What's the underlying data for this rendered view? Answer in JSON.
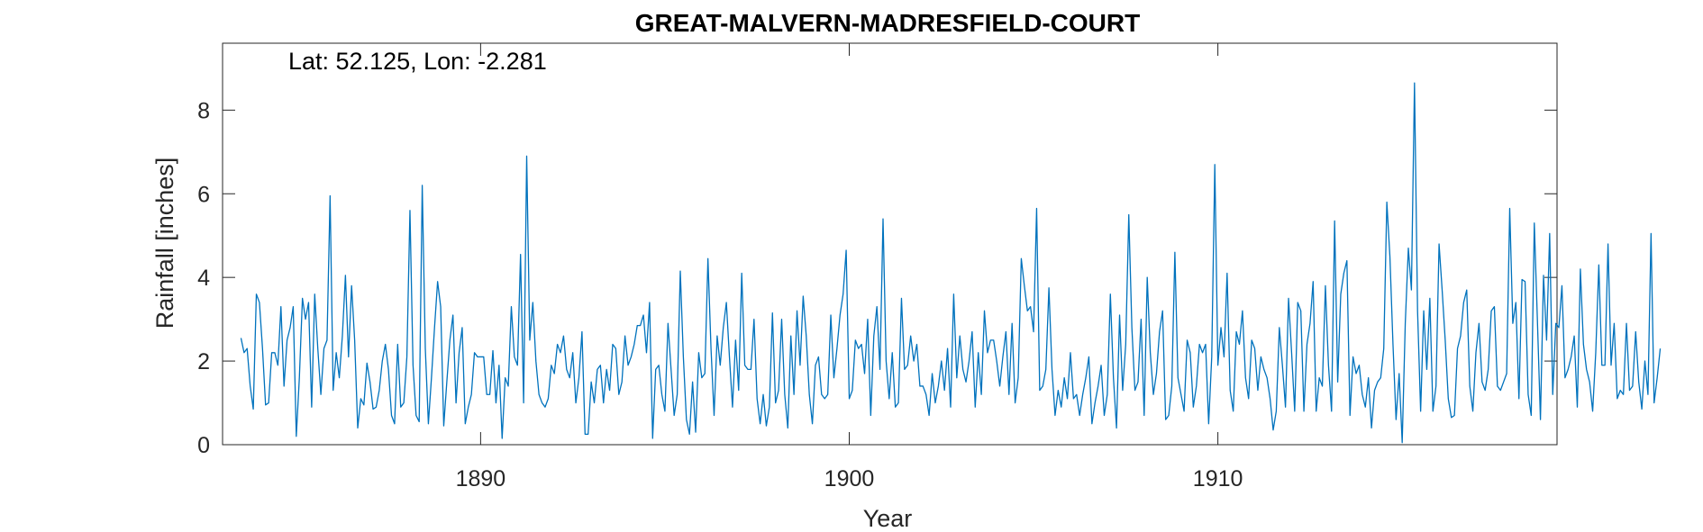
{
  "chart_data": {
    "type": "line",
    "title": "GREAT-MALVERN-MADRESFIELD-COURT",
    "annotation": "Lat: 52.125, Lon: -2.281",
    "xlabel": "Year",
    "ylabel": "Rainfall [inches]",
    "xlim": [
      1883.0,
      1919.2
    ],
    "ylim": [
      0,
      9.6
    ],
    "x_ticks": [
      1890,
      1900,
      1910
    ],
    "y_ticks": [
      0,
      2,
      4,
      6,
      8
    ],
    "grid": false,
    "line_color": "#0072BD",
    "x_start": 1883.5,
    "x_step": 0.0833333,
    "series": [
      {
        "values": [
          2.55,
          2.2,
          2.3,
          1.4,
          0.85,
          3.6,
          3.4,
          2.3,
          0.95,
          1.0,
          2.2,
          2.2,
          1.9,
          3.3,
          1.4,
          2.5,
          2.8,
          3.3,
          0.2,
          1.6,
          3.5,
          3.0,
          3.4,
          0.9,
          3.6,
          2.3,
          1.2,
          2.3,
          2.5,
          5.95,
          1.3,
          2.2,
          1.6,
          2.6,
          4.05,
          2.1,
          3.8,
          2.5,
          0.4,
          1.1,
          0.95,
          1.95,
          1.5,
          0.85,
          0.9,
          1.3,
          2.0,
          2.4,
          1.8,
          0.7,
          0.5,
          2.4,
          0.9,
          1.0,
          2.1,
          5.6,
          1.9,
          0.7,
          0.55,
          6.2,
          2.3,
          0.5,
          1.6,
          2.8,
          3.9,
          3.3,
          0.45,
          1.5,
          2.5,
          3.1,
          1.0,
          2.2,
          2.8,
          0.5,
          0.9,
          1.2,
          2.2,
          2.1,
          2.1,
          2.1,
          1.2,
          1.2,
          2.25,
          1.0,
          1.9,
          0.15,
          1.6,
          1.4,
          3.3,
          2.1,
          1.9,
          4.55,
          1.0,
          6.9,
          2.5,
          3.4,
          2.0,
          1.2,
          1.0,
          0.9,
          1.1,
          1.9,
          1.7,
          2.4,
          2.2,
          2.6,
          1.8,
          1.6,
          2.2,
          1.0,
          1.6,
          2.7,
          0.25,
          0.25,
          1.5,
          1.0,
          1.8,
          1.9,
          1.0,
          1.8,
          1.3,
          2.4,
          2.3,
          1.2,
          1.5,
          2.6,
          1.9,
          2.1,
          2.4,
          2.85,
          2.85,
          3.1,
          2.2,
          3.4,
          0.15,
          1.8,
          1.9,
          1.2,
          0.8,
          2.9,
          1.8,
          0.7,
          1.2,
          4.15,
          2.1,
          0.6,
          0.25,
          1.5,
          0.3,
          2.2,
          1.6,
          1.7,
          4.45,
          2.3,
          0.7,
          2.6,
          1.9,
          2.8,
          3.4,
          2.1,
          0.9,
          2.5,
          1.3,
          4.1,
          1.9,
          1.8,
          1.8,
          3.0,
          1.1,
          0.5,
          1.2,
          0.45,
          0.9,
          3.15,
          1.0,
          1.3,
          3.0,
          1.2,
          0.4,
          2.6,
          1.2,
          3.2,
          1.9,
          3.55,
          2.6,
          1.2,
          0.5,
          1.9,
          2.1,
          1.2,
          1.1,
          1.2,
          3.1,
          1.6,
          2.3,
          3.1,
          3.6,
          4.65,
          1.1,
          1.3,
          2.5,
          2.3,
          2.4,
          1.7,
          3.0,
          0.7,
          2.6,
          3.3,
          1.8,
          5.4,
          2.0,
          1.1,
          2.2,
          0.9,
          1.0,
          3.5,
          1.8,
          1.9,
          2.6,
          2.0,
          2.4,
          1.4,
          1.4,
          1.2,
          0.7,
          1.7,
          1.0,
          1.4,
          2.0,
          1.3,
          2.3,
          0.9,
          3.6,
          1.6,
          2.6,
          1.8,
          1.5,
          2.0,
          2.7,
          0.9,
          2.2,
          1.2,
          3.2,
          2.2,
          2.5,
          2.5,
          2.0,
          1.4,
          2.1,
          2.7,
          1.2,
          2.9,
          1.0,
          1.6,
          4.45,
          3.8,
          3.2,
          3.3,
          2.7,
          5.65,
          1.3,
          1.4,
          1.8,
          3.75,
          1.8,
          0.7,
          1.3,
          0.9,
          1.6,
          1.1,
          2.2,
          1.1,
          1.2,
          0.7,
          1.2,
          1.6,
          2.1,
          0.5,
          1.0,
          1.4,
          1.9,
          0.7,
          1.2,
          3.6,
          1.6,
          0.4,
          3.1,
          1.3,
          2.4,
          5.5,
          2.8,
          1.3,
          1.5,
          3.0,
          0.7,
          4.0,
          2.2,
          1.2,
          1.7,
          2.7,
          3.2,
          0.6,
          0.7,
          1.4,
          4.6,
          1.6,
          1.2,
          0.8,
          2.5,
          2.2,
          0.9,
          1.4,
          2.4,
          2.2,
          2.4,
          0.5,
          2.1,
          6.7,
          1.9,
          2.8,
          2.1,
          4.1,
          1.3,
          0.8,
          2.7,
          2.4,
          3.2,
          1.6,
          1.1,
          2.5,
          2.3,
          1.3,
          2.1,
          1.8,
          1.6,
          1.1,
          0.35,
          0.8,
          2.8,
          1.9,
          0.9,
          3.5,
          2.2,
          0.8,
          3.4,
          3.2,
          0.8,
          2.4,
          2.9,
          3.9,
          0.8,
          1.6,
          1.4,
          3.8,
          1.9,
          0.8,
          5.35,
          1.5,
          3.6,
          4.1,
          4.4,
          0.7,
          2.1,
          1.7,
          1.9,
          1.2,
          0.9,
          1.6,
          0.4,
          1.3,
          1.5,
          1.6,
          2.3,
          5.8,
          4.5,
          2.4,
          0.6,
          1.7,
          0.05,
          2.9,
          4.7,
          3.7,
          8.65,
          3.2,
          0.8,
          3.2,
          1.8,
          3.5,
          0.8,
          1.4,
          4.8,
          3.7,
          2.5,
          1.1,
          0.65,
          0.7,
          2.3,
          2.6,
          3.4,
          3.7,
          1.4,
          0.8,
          2.2,
          2.9,
          1.5,
          1.3,
          1.8,
          3.2,
          3.3,
          1.4,
          1.3,
          1.5,
          1.7,
          5.65,
          2.9,
          3.4,
          1.1,
          3.95,
          3.9,
          1.2,
          0.7,
          5.3,
          3.0,
          0.6,
          4.05,
          2.5,
          5.05,
          1.2,
          2.9,
          2.8,
          3.8,
          1.6,
          1.8,
          2.1,
          2.6,
          0.9,
          4.2,
          2.4,
          1.8,
          1.5,
          0.8,
          2.2,
          4.3,
          1.9,
          1.9,
          4.8,
          1.9,
          2.9,
          1.1,
          1.3,
          1.2,
          2.9,
          1.3,
          1.4,
          2.7,
          1.5,
          0.85,
          2.0,
          1.2,
          5.05,
          1.0,
          1.6,
          2.3
        ]
      }
    ]
  }
}
